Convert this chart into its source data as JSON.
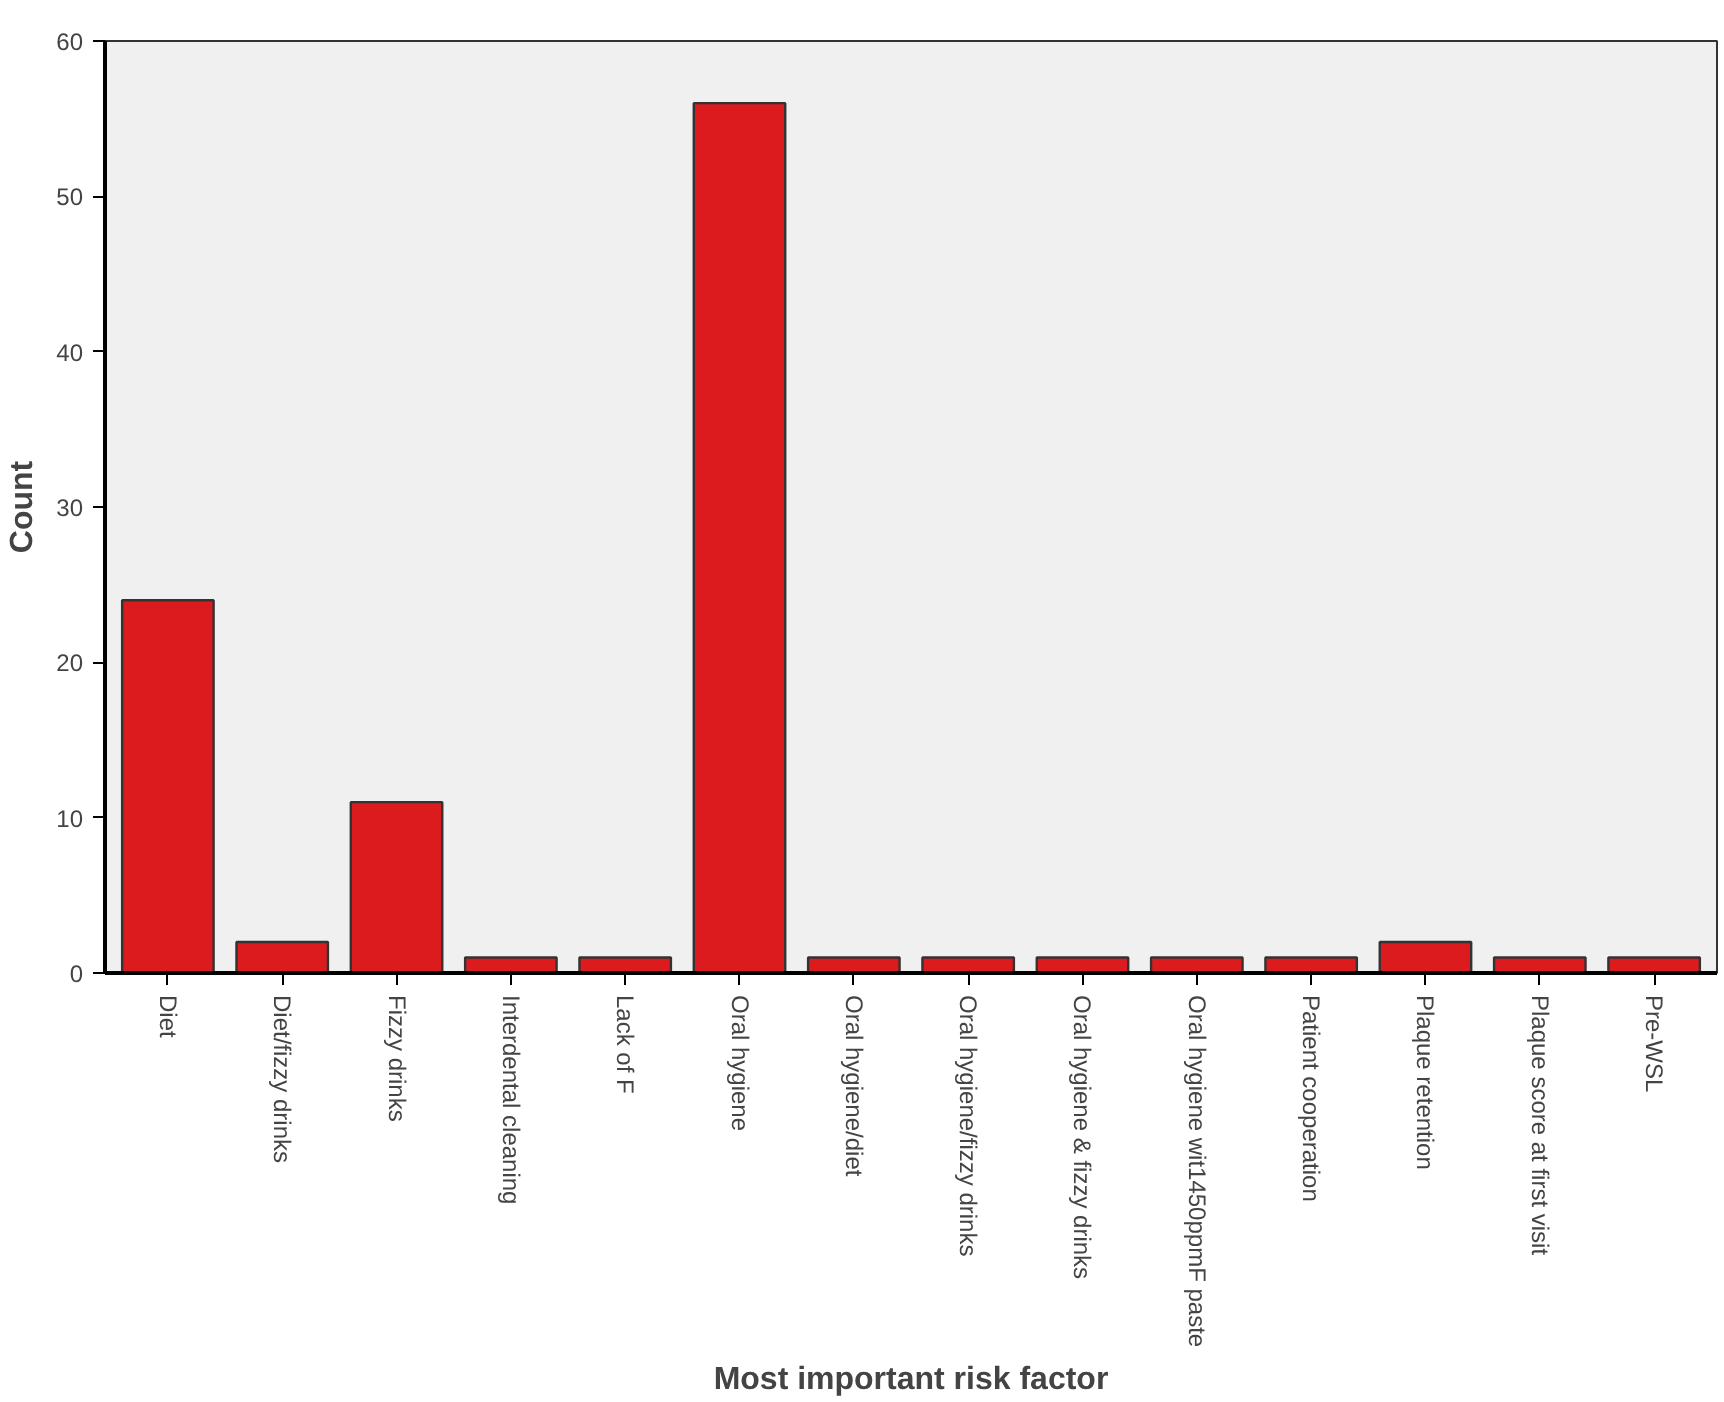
{
  "chart_data": {
    "type": "bar",
    "xlabel": "Most important risk factor",
    "ylabel": "Count",
    "categories": [
      "Diet",
      "Diet/fizzy drinks",
      "Fizzy drinks",
      "Interdental cleaning",
      "Lack of F",
      "Oral hygiene",
      "Oral hygiene/diet",
      "Oral hygiene/fizzy drinks",
      "Oral hygiene & fizzy drinks",
      "Oral hygiene wit1450ppmF paste",
      "Patient cooperation",
      "Plaque retention",
      "Plaque score at first visit",
      "Pre-WSL"
    ],
    "values": [
      24,
      2,
      11,
      1,
      1,
      56,
      1,
      1,
      1,
      1,
      1,
      2,
      1,
      1
    ],
    "color": "#dc1b1f",
    "ylim": [
      0,
      60
    ],
    "yticks": [
      0,
      10,
      20,
      30,
      40,
      50,
      60
    ],
    "grid": false
  }
}
